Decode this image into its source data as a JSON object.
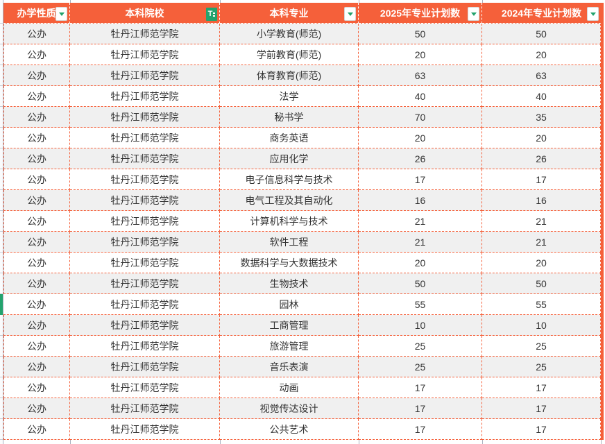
{
  "table": {
    "columns": [
      {
        "label": "办学性质",
        "filter": "dropdown"
      },
      {
        "label": "本科院校",
        "filter": "active"
      },
      {
        "label": "本科专业",
        "filter": "dropdown"
      },
      {
        "label": "2025年专业计划数",
        "filter": "dropdown"
      },
      {
        "label": "2024年专业计划数",
        "filter": "dropdown"
      }
    ],
    "rows": [
      {
        "nature": "公办",
        "college": "牡丹江师范学院",
        "major": "小学教育(师范)",
        "plan2025": "50",
        "plan2024": "50"
      },
      {
        "nature": "公办",
        "college": "牡丹江师范学院",
        "major": "学前教育(师范)",
        "plan2025": "20",
        "plan2024": "20"
      },
      {
        "nature": "公办",
        "college": "牡丹江师范学院",
        "major": "体育教育(师范)",
        "plan2025": "63",
        "plan2024": "63"
      },
      {
        "nature": "公办",
        "college": "牡丹江师范学院",
        "major": "法学",
        "plan2025": "40",
        "plan2024": "40"
      },
      {
        "nature": "公办",
        "college": "牡丹江师范学院",
        "major": "秘书学",
        "plan2025": "70",
        "plan2024": "35"
      },
      {
        "nature": "公办",
        "college": "牡丹江师范学院",
        "major": "商务英语",
        "plan2025": "20",
        "plan2024": "20"
      },
      {
        "nature": "公办",
        "college": "牡丹江师范学院",
        "major": "应用化学",
        "plan2025": "26",
        "plan2024": "26"
      },
      {
        "nature": "公办",
        "college": "牡丹江师范学院",
        "major": "电子信息科学与技术",
        "plan2025": "17",
        "plan2024": "17"
      },
      {
        "nature": "公办",
        "college": "牡丹江师范学院",
        "major": "电气工程及其自动化",
        "plan2025": "16",
        "plan2024": "16"
      },
      {
        "nature": "公办",
        "college": "牡丹江师范学院",
        "major": "计算机科学与技术",
        "plan2025": "21",
        "plan2024": "21"
      },
      {
        "nature": "公办",
        "college": "牡丹江师范学院",
        "major": "软件工程",
        "plan2025": "21",
        "plan2024": "21"
      },
      {
        "nature": "公办",
        "college": "牡丹江师范学院",
        "major": "数据科学与大数据技术",
        "plan2025": "20",
        "plan2024": "20"
      },
      {
        "nature": "公办",
        "college": "牡丹江师范学院",
        "major": "生物技术",
        "plan2025": "50",
        "plan2024": "50"
      },
      {
        "nature": "公办",
        "college": "牡丹江师范学院",
        "major": "园林",
        "plan2025": "55",
        "plan2024": "55",
        "marker": true
      },
      {
        "nature": "公办",
        "college": "牡丹江师范学院",
        "major": "工商管理",
        "plan2025": "10",
        "plan2024": "10"
      },
      {
        "nature": "公办",
        "college": "牡丹江师范学院",
        "major": "旅游管理",
        "plan2025": "25",
        "plan2024": "25"
      },
      {
        "nature": "公办",
        "college": "牡丹江师范学院",
        "major": "音乐表演",
        "plan2025": "25",
        "plan2024": "25"
      },
      {
        "nature": "公办",
        "college": "牡丹江师范学院",
        "major": "动画",
        "plan2025": "17",
        "plan2024": "17"
      },
      {
        "nature": "公办",
        "college": "牡丹江师范学院",
        "major": "视觉传达设计",
        "plan2025": "17",
        "plan2024": "17"
      },
      {
        "nature": "公办",
        "college": "牡丹江师范学院",
        "major": "公共艺术",
        "plan2025": "17",
        "plan2024": "17"
      }
    ]
  },
  "icons": {
    "filter_active_glyph": "T"
  },
  "colors": {
    "header_bg": "#F5603A",
    "header_text": "#FFFFFF",
    "dashed_border": "#F5603A",
    "row_band": "#F0F0F0",
    "row_plain": "#FFFFFF",
    "cell_text": "#333333",
    "filter_green": "#23A36D",
    "row_marker_green": "#23A36D",
    "gridline": "#AAB1BF"
  }
}
